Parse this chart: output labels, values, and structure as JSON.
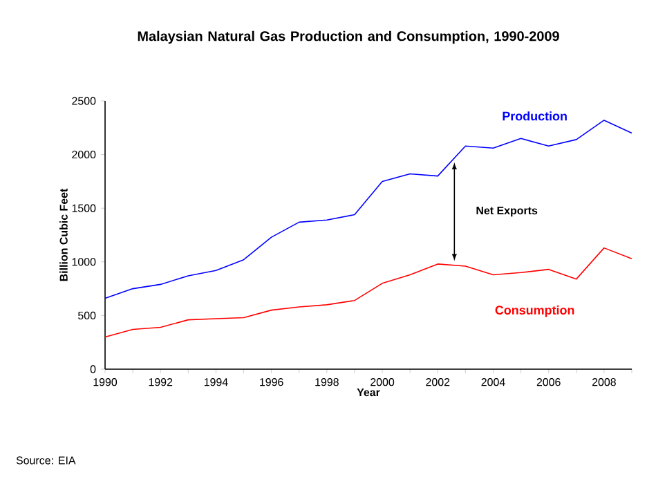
{
  "chart_data": {
    "type": "line",
    "title": "Malaysian Natural Gas Production and Consumption, 1990-2009",
    "xlabel": "Year",
    "ylabel": "Billion Cubic Feet",
    "x": [
      1990,
      1991,
      1992,
      1993,
      1994,
      1995,
      1996,
      1997,
      1998,
      1999,
      2000,
      2001,
      2002,
      2003,
      2004,
      2005,
      2006,
      2007,
      2008,
      2009
    ],
    "series": [
      {
        "name": "Production",
        "color": "#0000ff",
        "values": [
          660,
          750,
          790,
          870,
          920,
          1020,
          1230,
          1370,
          1390,
          1440,
          1750,
          1820,
          1800,
          2080,
          2060,
          2150,
          2080,
          2140,
          2320,
          2200
        ]
      },
      {
        "name": "Consumption",
        "color": "#ff0000",
        "values": [
          300,
          370,
          390,
          460,
          470,
          480,
          550,
          580,
          600,
          640,
          800,
          880,
          980,
          960,
          880,
          900,
          930,
          840,
          1130,
          1030
        ]
      }
    ],
    "xlim": [
      1990,
      2009
    ],
    "xticks": [
      1990,
      {
        "value": 1991,
        "label": null
      },
      1992,
      {
        "value": 1993,
        "label": null
      },
      1994,
      {
        "value": 1995,
        "label": null
      },
      1996,
      {
        "value": 1997,
        "label": null
      },
      1998,
      {
        "value": 1999,
        "label": null
      },
      2000,
      {
        "value": 2001,
        "label": null
      },
      2002,
      {
        "value": 2003,
        "label": null
      },
      2004,
      {
        "value": 2005,
        "label": null
      },
      2006,
      {
        "value": 2007,
        "label": null
      },
      2008,
      {
        "value": 2009,
        "label": null
      }
    ],
    "ylim": [
      0,
      2500
    ],
    "yticks": [
      0,
      500,
      1000,
      1500,
      2000,
      2500
    ],
    "grid": false,
    "legend": false,
    "marker": "none",
    "line_style": "solid",
    "annotations": [
      "Net Exports",
      "Source: EIA"
    ]
  }
}
